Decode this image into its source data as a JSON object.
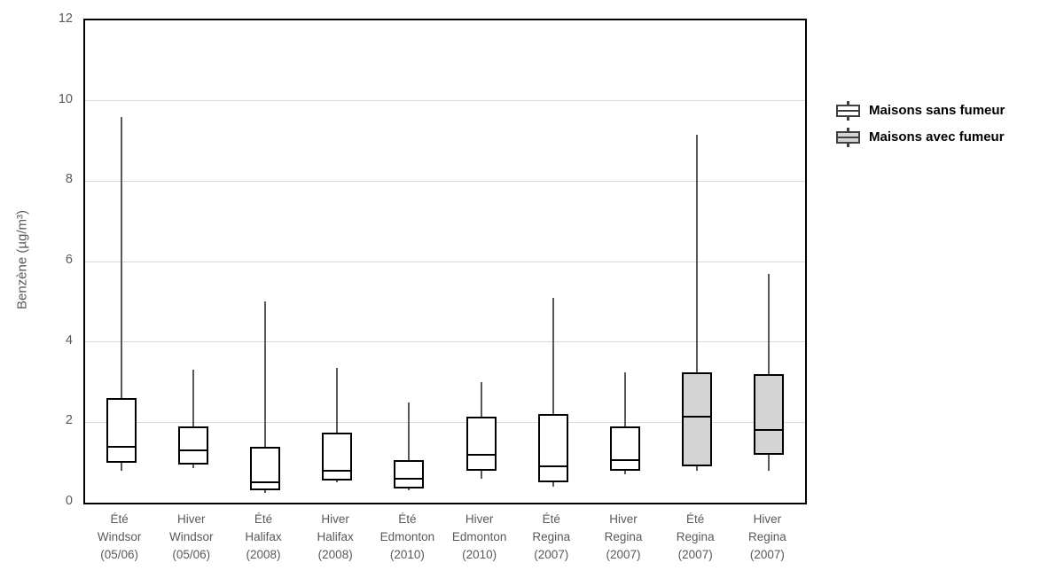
{
  "chart_data": {
    "type": "boxplot",
    "title": "",
    "xlabel": "",
    "ylabel": "Benzène (µg/m³)",
    "ylim": [
      0,
      12
    ],
    "yticks": [
      0,
      2,
      4,
      6,
      8,
      10,
      12
    ],
    "grid": "horizontal",
    "legend_position": "right",
    "legend": {
      "items": [
        {
          "label": "Maisons sans fumeur",
          "fill": "#ffffff"
        },
        {
          "label": "Maisons avec fumeur",
          "fill": "#d4d4d4"
        }
      ]
    },
    "boxes": [
      {
        "label_lines": [
          "Été",
          "Windsor",
          "(05/06)"
        ],
        "group": 0,
        "whisker_low": 0.8,
        "q1": 1.0,
        "median": 1.4,
        "q3": 2.6,
        "whisker_high": 9.6
      },
      {
        "label_lines": [
          "Hiver",
          "Windsor",
          "(05/06)"
        ],
        "group": 0,
        "whisker_low": 0.85,
        "q1": 0.95,
        "median": 1.3,
        "q3": 1.9,
        "whisker_high": 3.3
      },
      {
        "label_lines": [
          "Été",
          "Halifax",
          "(2008)"
        ],
        "group": 0,
        "whisker_low": 0.25,
        "q1": 0.3,
        "median": 0.5,
        "q3": 1.4,
        "whisker_high": 5.0
      },
      {
        "label_lines": [
          "Hiver",
          "Halifax",
          "(2008)"
        ],
        "group": 0,
        "whisker_low": 0.5,
        "q1": 0.55,
        "median": 0.8,
        "q3": 1.75,
        "whisker_high": 3.35
      },
      {
        "label_lines": [
          "Été",
          "Edmonton",
          "(2010)"
        ],
        "group": 0,
        "whisker_low": 0.3,
        "q1": 0.35,
        "median": 0.6,
        "q3": 1.05,
        "whisker_high": 2.5
      },
      {
        "label_lines": [
          "Hiver",
          "Edmonton",
          "(2010)"
        ],
        "group": 0,
        "whisker_low": 0.6,
        "q1": 0.8,
        "median": 1.2,
        "q3": 2.15,
        "whisker_high": 3.0
      },
      {
        "label_lines": [
          "Été",
          "Regina",
          "(2007)"
        ],
        "group": 0,
        "whisker_low": 0.4,
        "q1": 0.5,
        "median": 0.9,
        "q3": 2.2,
        "whisker_high": 5.1
      },
      {
        "label_lines": [
          "Hiver",
          "Regina",
          "(2007)"
        ],
        "group": 0,
        "whisker_low": 0.7,
        "q1": 0.8,
        "median": 1.05,
        "q3": 1.9,
        "whisker_high": 3.25
      },
      {
        "label_lines": [
          "Été",
          "Regina",
          "(2007)"
        ],
        "group": 1,
        "whisker_low": 0.8,
        "q1": 0.9,
        "median": 2.15,
        "q3": 3.25,
        "whisker_high": 9.15
      },
      {
        "label_lines": [
          "Hiver",
          "Regina",
          "(2007)"
        ],
        "group": 1,
        "whisker_low": 0.8,
        "q1": 1.2,
        "median": 1.8,
        "q3": 3.2,
        "whisker_high": 5.7
      }
    ],
    "colors": {
      "box_border": "#000000",
      "median": "#000000",
      "whisker": "#595959",
      "gridline": "#d9d9d9",
      "axis_text": "#595959",
      "nonsmoker_fill": "#ffffff",
      "smoker_fill": "#d4d4d4"
    }
  }
}
